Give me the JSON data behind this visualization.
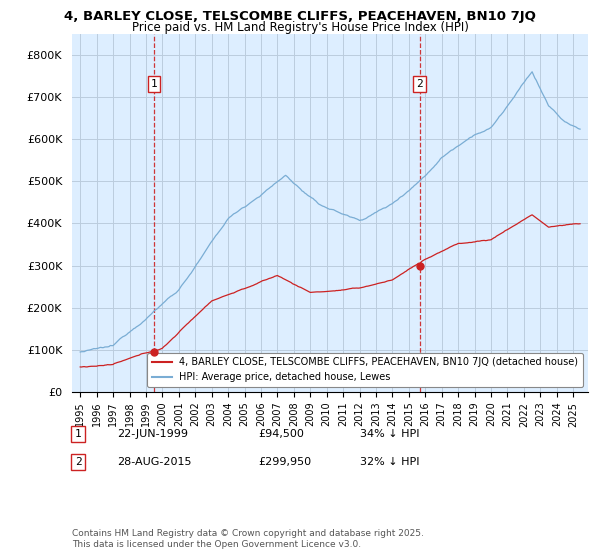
{
  "title": "4, BARLEY CLOSE, TELSCOMBE CLIFFS, PEACEHAVEN, BN10 7JQ",
  "subtitle": "Price paid vs. HM Land Registry's House Price Index (HPI)",
  "ylim": [
    0,
    850000
  ],
  "yticks": [
    0,
    100000,
    200000,
    300000,
    400000,
    500000,
    600000,
    700000,
    800000
  ],
  "hpi_color": "#7aadd4",
  "price_color": "#cc2222",
  "sale1_year": 1999.47,
  "sale1_price": 94500,
  "sale2_year": 2015.65,
  "sale2_price": 299950,
  "marker1_date_str": "22-JUN-1999",
  "marker1_price": "£94,500",
  "marker1_pct": "34% ↓ HPI",
  "marker2_date_str": "28-AUG-2015",
  "marker2_price": "£299,950",
  "marker2_pct": "32% ↓ HPI",
  "legend_price_label": "4, BARLEY CLOSE, TELSCOMBE CLIFFS, PEACEHAVEN, BN10 7JQ (detached house)",
  "legend_hpi_label": "HPI: Average price, detached house, Lewes",
  "footer": "Contains HM Land Registry data © Crown copyright and database right 2025.\nThis data is licensed under the Open Government Licence v3.0.",
  "chart_bg": "#ddeeff",
  "grid_color": "#bbccdd"
}
